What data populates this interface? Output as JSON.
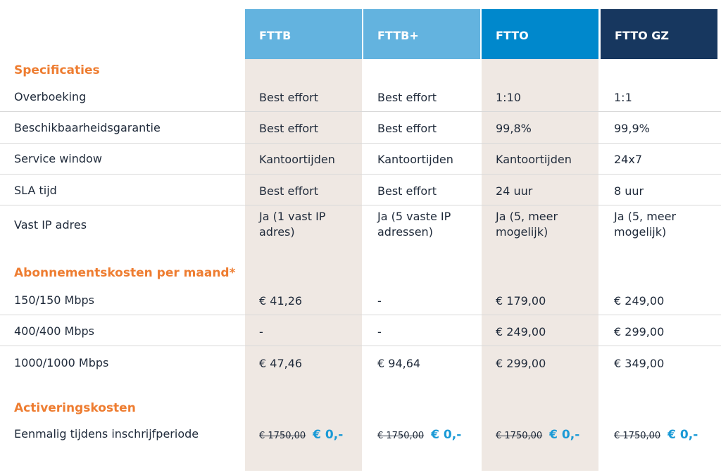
{
  "columns": [
    "FTTB",
    "FTTB+",
    "FTTO",
    "FTTO GZ"
  ],
  "sections": {
    "specs": "Specificaties",
    "subscription": "Abonnementskosten per maand*",
    "activation": "Activeringskosten"
  },
  "spec_rows": [
    {
      "label": "Overboeking",
      "values": [
        "Best effort",
        "Best effort",
        "1:10",
        "1:1"
      ]
    },
    {
      "label": "Beschikbaarheidsgarantie",
      "values": [
        "Best effort",
        "Best effort",
        "99,8%",
        "99,9%"
      ]
    },
    {
      "label": "Service window",
      "values": [
        "Kantoortijden",
        "Kantoortijden",
        "Kantoortijden",
        "24x7"
      ]
    },
    {
      "label": "SLA tijd",
      "values": [
        "Best effort",
        "Best effort",
        "24 uur",
        "8 uur"
      ]
    },
    {
      "label": "Vast IP adres",
      "values": [
        "Ja (1 vast IP adres)",
        "Ja (5 vaste IP adressen)",
        "Ja (5, meer mogelijk)",
        "Ja (5, meer mogelijk)"
      ]
    }
  ],
  "price_rows": [
    {
      "label": "150/150 Mbps",
      "values": [
        "€ 41,26",
        "-",
        "€ 179,00",
        "€ 249,00"
      ]
    },
    {
      "label": "400/400 Mbps",
      "values": [
        "-",
        "-",
        "€ 249,00",
        "€ 299,00"
      ]
    },
    {
      "label": "1000/1000 Mbps",
      "values": [
        "€ 47,46",
        "€ 94,64",
        "€ 299,00",
        "€ 349,00"
      ]
    }
  ],
  "activation_row": {
    "label": "Eenmalig tijdens inschrijfperiode",
    "old_price": "€ 1750,00",
    "new_price": "€ 0,-"
  },
  "colors": {
    "accent": "#ee7d31",
    "light_blue": "#63b3df",
    "mid_blue": "#0088cc",
    "dark_blue": "#17375f",
    "price_blue": "#1a9ad6"
  }
}
